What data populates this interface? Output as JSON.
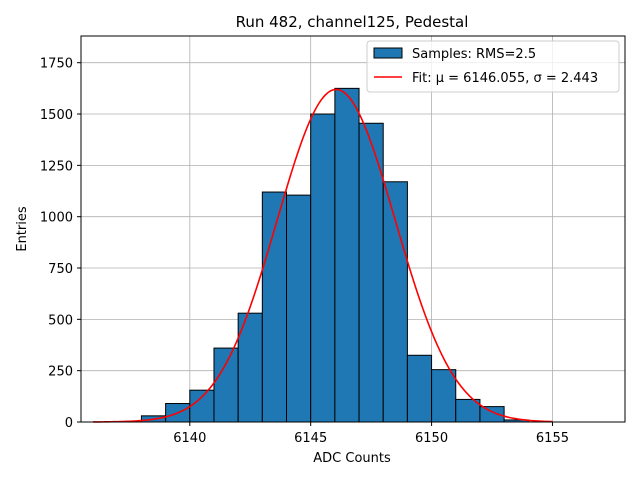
{
  "chart_data": {
    "type": "bar",
    "title": "Run 482, channel125, Pedestal",
    "xlabel": "ADC Counts",
    "ylabel": "Entries",
    "xlim": [
      6135.5,
      6158.0
    ],
    "ylim": [
      0,
      1880
    ],
    "xticks": [
      6140,
      6145,
      6150,
      6155
    ],
    "yticks": [
      0,
      250,
      500,
      750,
      1000,
      1250,
      1500,
      1750
    ],
    "grid": true,
    "legend_position": "top-right",
    "bar_color": "#1f77b4",
    "fit_color": "#ff0000",
    "series": [
      {
        "name": "Samples: RMS=2.5",
        "type": "histogram",
        "bins": [
          {
            "x0": 6138,
            "x1": 6139,
            "value": 30
          },
          {
            "x0": 6139,
            "x1": 6140,
            "value": 90
          },
          {
            "x0": 6140,
            "x1": 6141,
            "value": 155
          },
          {
            "x0": 6141,
            "x1": 6142,
            "value": 360
          },
          {
            "x0": 6142,
            "x1": 6143,
            "value": 530
          },
          {
            "x0": 6143,
            "x1": 6144,
            "value": 1120
          },
          {
            "x0": 6144,
            "x1": 6145,
            "value": 1105
          },
          {
            "x0": 6145,
            "x1": 6146,
            "value": 1500
          },
          {
            "x0": 6146,
            "x1": 6147,
            "value": 1625
          },
          {
            "x0": 6147,
            "x1": 6148,
            "value": 1455
          },
          {
            "x0": 6148,
            "x1": 6149,
            "value": 1170
          },
          {
            "x0": 6149,
            "x1": 6150,
            "value": 325
          },
          {
            "x0": 6150,
            "x1": 6151,
            "value": 255
          },
          {
            "x0": 6151,
            "x1": 6152,
            "value": 110
          },
          {
            "x0": 6152,
            "x1": 6153,
            "value": 75
          },
          {
            "x0": 6153,
            "x1": 6154,
            "value": 10
          }
        ]
      },
      {
        "name": "Fit: μ = 6146.055, σ = 2.443",
        "type": "gaussian",
        "mu": 6146.055,
        "sigma": 2.443,
        "amplitude": 1620,
        "x_range": [
          6136,
          6155
        ]
      }
    ]
  }
}
